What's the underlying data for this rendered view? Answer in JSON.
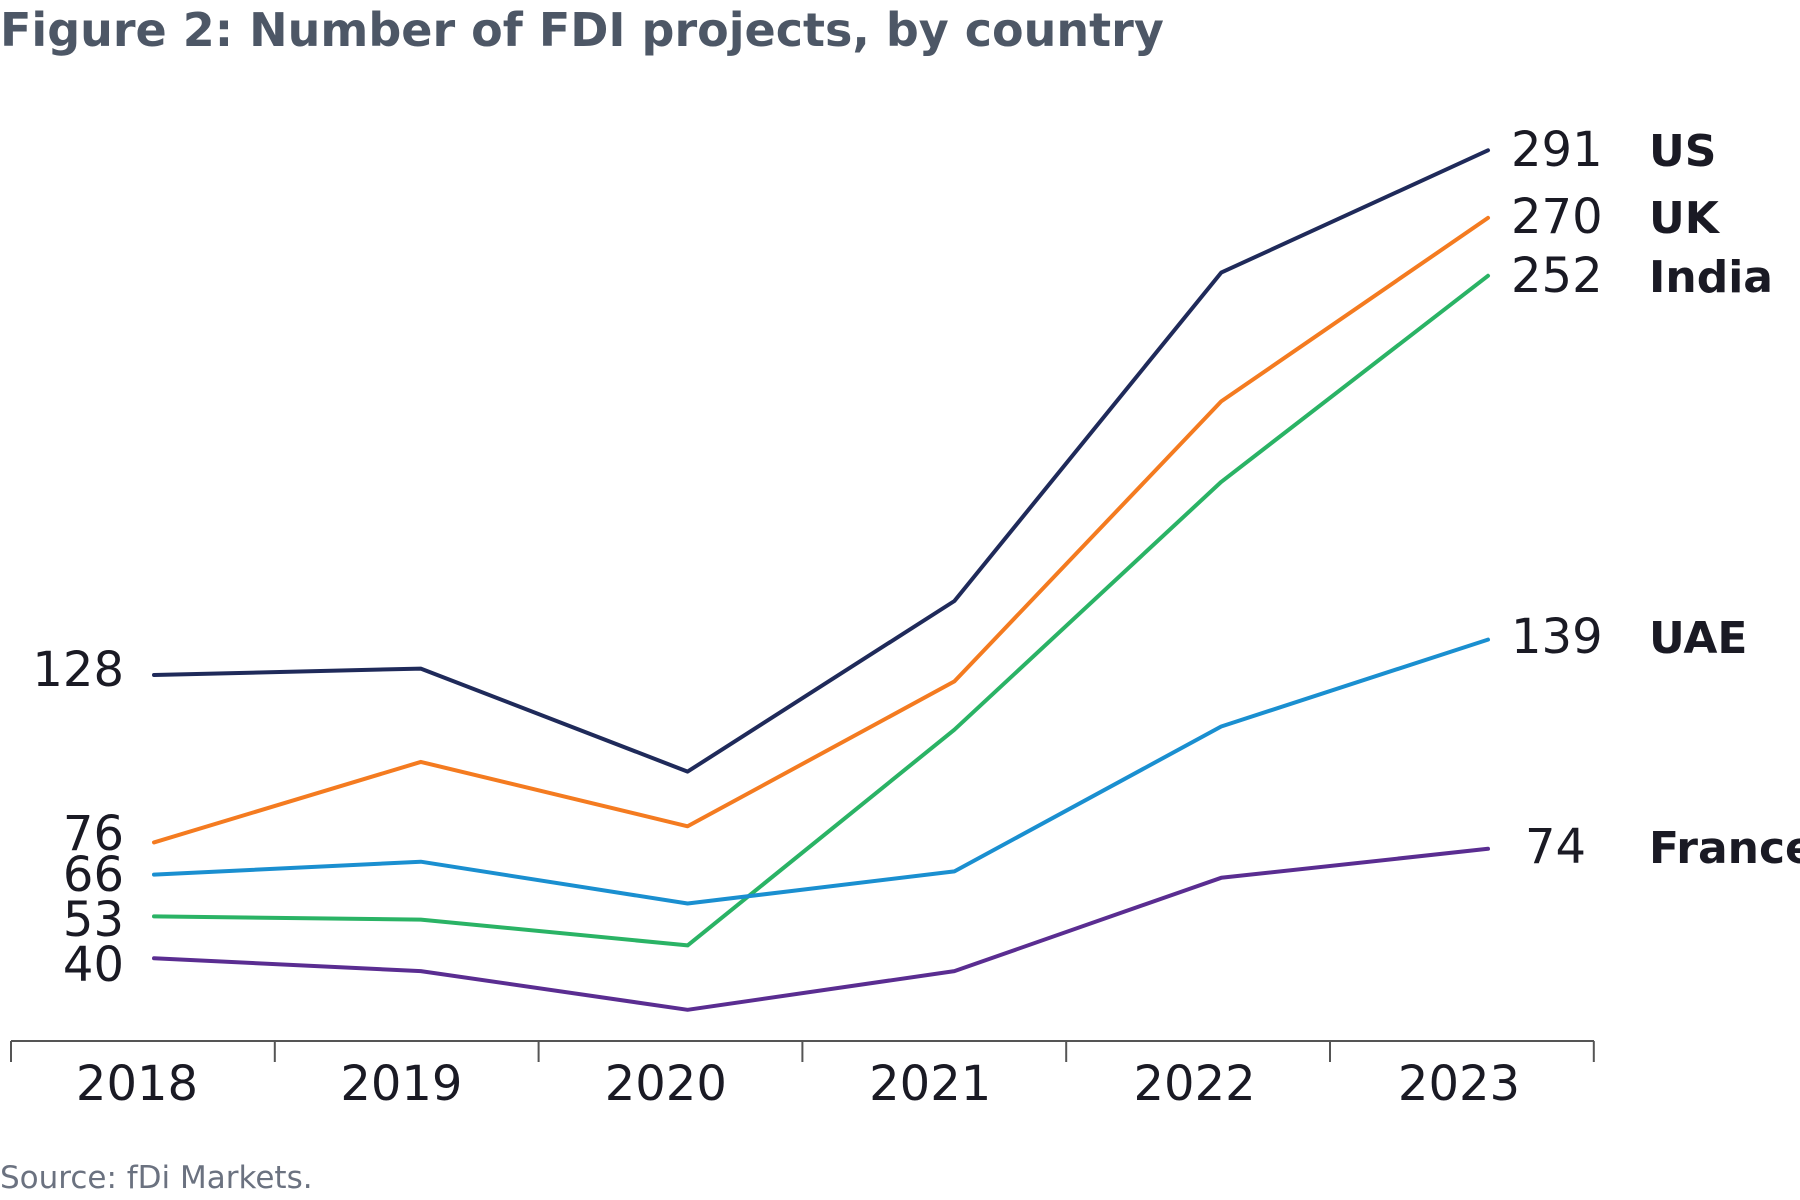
{
  "chart_data": {
    "type": "line",
    "title": "Figure 2: Number of FDI projects, by country",
    "source": "Source: fDi Markets.",
    "categories": [
      "2018",
      "2019",
      "2020",
      "2021",
      "2022",
      "2023"
    ],
    "xlabel": "",
    "ylabel": "",
    "grid": false,
    "legend": "direct labels at right end of lines",
    "series": [
      {
        "name": "US",
        "color": "#1f2a5a",
        "values": [
          128,
          130,
          98,
          151,
          253,
          291
        ],
        "start_label": "128",
        "end_label": "291"
      },
      {
        "name": "UK",
        "color": "#f47b20",
        "values": [
          76,
          101,
          81,
          126,
          213,
          270
        ],
        "start_label": "76",
        "end_label": "270"
      },
      {
        "name": "India",
        "color": "#2ab365",
        "values": [
          53,
          52,
          44,
          111,
          188,
          252
        ],
        "start_label": "53",
        "end_label": "252"
      },
      {
        "name": "UAE",
        "color": "#1a8fd0",
        "values": [
          66,
          70,
          57,
          67,
          112,
          139
        ],
        "start_label": "66",
        "end_label": "139"
      },
      {
        "name": "France",
        "color": "#5a2d91",
        "values": [
          40,
          36,
          24,
          36,
          65,
          74
        ],
        "start_label": "40",
        "end_label": "74"
      }
    ]
  }
}
